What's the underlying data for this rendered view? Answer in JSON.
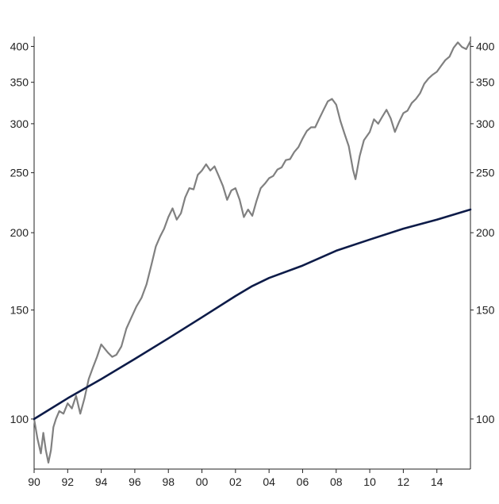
{
  "chart_data": {
    "type": "line",
    "title": "",
    "xlabel": "",
    "ylabel": "",
    "y_scale": "log",
    "ylim": [
      83,
      415
    ],
    "xlim": [
      1990,
      2016
    ],
    "x_ticks": [
      "90",
      "92",
      "94",
      "96",
      "98",
      "00",
      "02",
      "04",
      "06",
      "08",
      "10",
      "12",
      "14"
    ],
    "x_tick_values": [
      1990,
      1992,
      1994,
      1996,
      1998,
      2000,
      2002,
      2004,
      2006,
      2008,
      2010,
      2012,
      2014
    ],
    "y_ticks": [
      "100",
      "150",
      "200",
      "250",
      "300",
      "350",
      "400"
    ],
    "y_tick_values": [
      100,
      150,
      200,
      250,
      300,
      350,
      400
    ],
    "grid": false,
    "legend": "none",
    "series": [
      {
        "color": "#808080",
        "x": [
          1990.0,
          1990.2,
          1990.4,
          1990.55,
          1990.7,
          1990.85,
          1991.0,
          1991.15,
          1991.3,
          1991.5,
          1991.75,
          1992.0,
          1992.25,
          1992.5,
          1992.75,
          1993.0,
          1993.25,
          1993.5,
          1993.75,
          1994.0,
          1994.2,
          1994.4,
          1994.65,
          1994.9,
          1995.2,
          1995.5,
          1995.8,
          1996.1,
          1996.4,
          1996.7,
          1997.0,
          1997.25,
          1997.5,
          1997.75,
          1998.0,
          1998.25,
          1998.5,
          1998.75,
          1999.0,
          1999.25,
          1999.5,
          1999.75,
          2000.0,
          2000.25,
          2000.5,
          2000.75,
          2001.0,
          2001.25,
          2001.5,
          2001.75,
          2002.0,
          2002.25,
          2002.5,
          2002.75,
          2003.0,
          2003.25,
          2003.5,
          2003.75,
          2004.0,
          2004.25,
          2004.5,
          2004.75,
          2005.0,
          2005.25,
          2005.5,
          2005.75,
          2006.0,
          2006.25,
          2006.5,
          2006.75,
          2007.0,
          2007.25,
          2007.5,
          2007.75,
          2008.0,
          2008.25,
          2008.5,
          2008.75,
          2009.0,
          2009.15,
          2009.4,
          2009.65,
          2010.0,
          2010.25,
          2010.5,
          2010.75,
          2011.0,
          2011.25,
          2011.5,
          2011.75,
          2012.0,
          2012.25,
          2012.5,
          2012.75,
          2013.0,
          2013.25,
          2013.5,
          2013.75,
          2014.0,
          2014.25,
          2014.5,
          2014.75,
          2015.0,
          2015.25,
          2015.5,
          2015.75,
          2016.0
        ],
        "values": [
          100,
          93,
          88,
          95,
          89,
          85,
          89,
          97,
          100,
          103,
          102,
          106,
          104,
          109,
          102,
          108,
          116,
          121,
          126,
          132,
          130,
          128,
          126,
          127,
          131,
          140,
          146,
          152,
          157,
          165,
          178,
          190,
          197,
          203,
          212,
          219,
          210,
          215,
          228,
          236,
          235,
          248,
          252,
          258,
          252,
          256,
          247,
          238,
          226,
          234,
          236,
          226,
          212,
          218,
          213,
          225,
          236,
          240,
          245,
          247,
          253,
          255,
          262,
          263,
          270,
          275,
          284,
          292,
          296,
          296,
          306,
          316,
          326,
          329,
          322,
          303,
          289,
          276,
          253,
          244,
          266,
          282,
          291,
          305,
          300,
          308,
          316,
          306,
          291,
          302,
          312,
          315,
          324,
          329,
          336,
          348,
          355,
          360,
          364,
          372,
          380,
          385,
          398,
          406,
          399,
          396,
          408
        ]
      },
      {
        "color": "#0d1b48",
        "x": [
          1990,
          1992,
          1994,
          1996,
          1998,
          2000,
          2002,
          2003,
          2004,
          2006,
          2008,
          2010,
          2012,
          2014,
          2016
        ],
        "values": [
          100,
          108,
          116,
          125,
          135,
          146,
          158,
          164,
          169,
          177,
          187,
          195,
          203,
          210,
          218
        ]
      }
    ]
  }
}
